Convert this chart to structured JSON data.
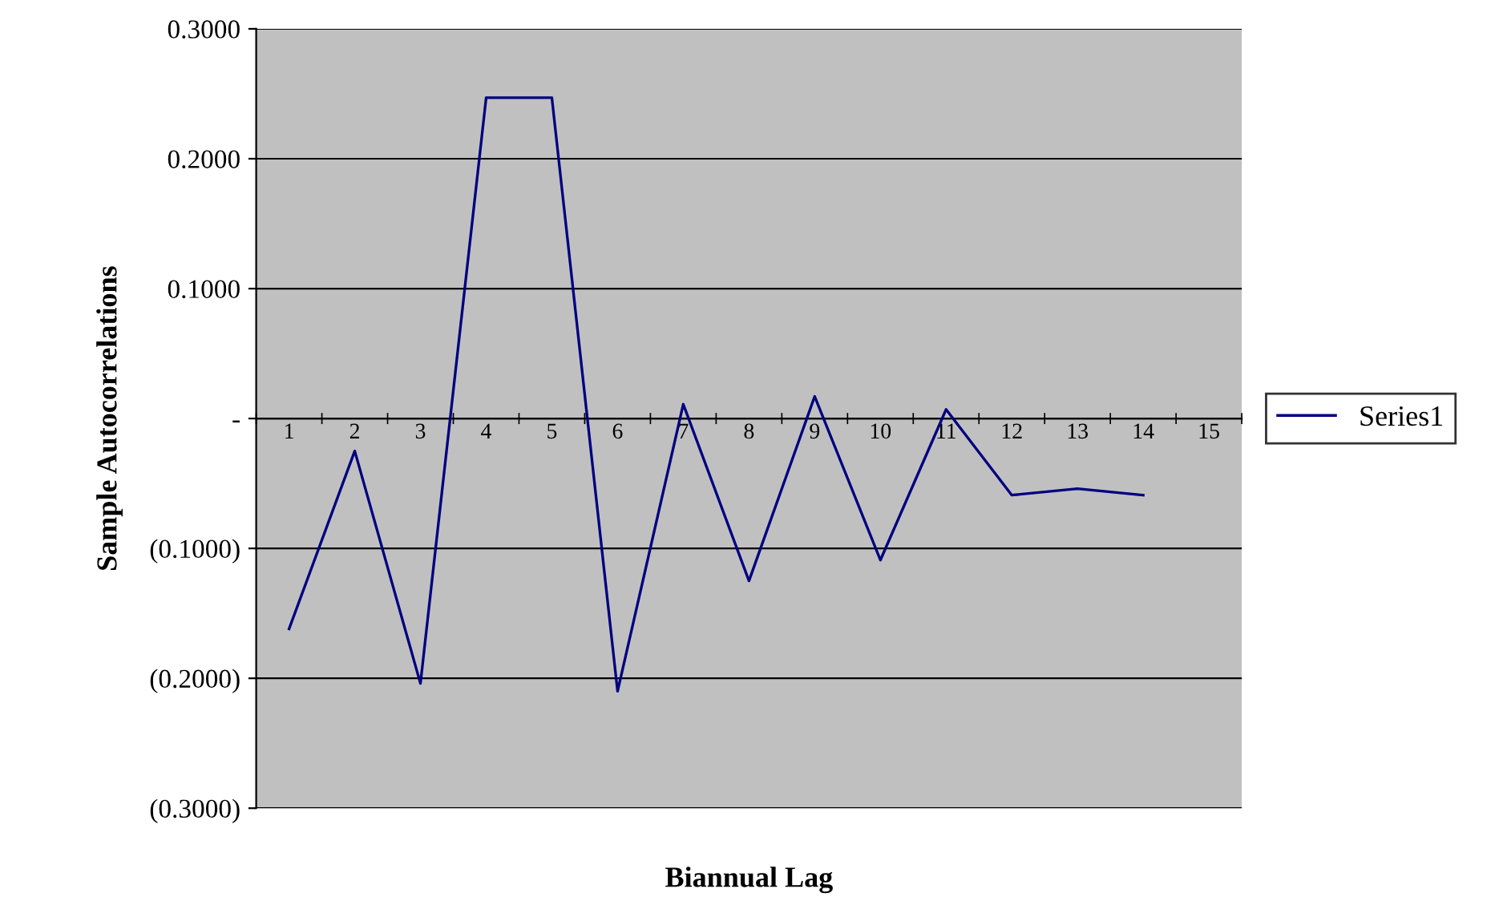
{
  "chart_data": {
    "type": "line",
    "xlabel": "Biannual Lag",
    "ylabel": "Sample Autocorrelations",
    "categories": [
      "1",
      "2",
      "3",
      "4",
      "5",
      "6",
      "7",
      "8",
      "9",
      "10",
      "11",
      "12",
      "13",
      "14",
      "15"
    ],
    "series": [
      {
        "name": "Series1",
        "color": "#000080",
        "values": [
          -0.162,
          -0.025,
          -0.204,
          0.247,
          0.247,
          -0.21,
          0.011,
          -0.125,
          0.017,
          -0.109,
          0.007,
          -0.059,
          -0.054,
          -0.059,
          null
        ]
      }
    ],
    "ylim": [
      -0.3,
      0.3
    ],
    "yticks": [
      {
        "value": -0.3,
        "label": "(0.3000)"
      },
      {
        "value": -0.2,
        "label": "(0.2000)"
      },
      {
        "value": -0.1,
        "label": "(0.1000)"
      },
      {
        "value": 0,
        "label": "-"
      },
      {
        "value": 0.1,
        "label": "0.1000"
      },
      {
        "value": 0.2,
        "label": "0.2000"
      },
      {
        "value": 0.3,
        "label": "0.3000"
      }
    ],
    "grid": "y",
    "legend": "right",
    "marker": "none",
    "line_style": "solid"
  }
}
